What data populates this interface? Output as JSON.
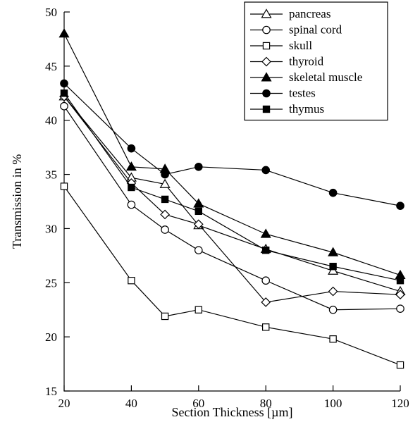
{
  "chart_data": {
    "type": "line",
    "xlabel": "Section Thickness [µm]",
    "ylabel": "Transmission in %",
    "xlim": [
      20,
      120
    ],
    "ylim": [
      15,
      50
    ],
    "x_ticks": [
      20,
      40,
      60,
      80,
      100,
      120
    ],
    "y_ticks": [
      15,
      20,
      25,
      30,
      35,
      40,
      45,
      50
    ],
    "grid": false,
    "legend_position": "top-right",
    "series": [
      {
        "name": "pancreas",
        "marker": "triangle-open",
        "x": [
          20,
          40,
          50,
          60,
          80,
          100,
          120
        ],
        "y": [
          42.2,
          34.7,
          34.1,
          30.3,
          28.1,
          26.1,
          24.2
        ]
      },
      {
        "name": "spinal cord",
        "marker": "circle-open",
        "x": [
          20,
          40,
          50,
          60,
          80,
          100,
          120
        ],
        "y": [
          41.3,
          32.2,
          29.9,
          28.0,
          25.2,
          22.5,
          22.6
        ]
      },
      {
        "name": "skull",
        "marker": "square-open",
        "x": [
          20,
          40,
          50,
          60,
          80,
          100,
          120
        ],
        "y": [
          33.9,
          25.2,
          21.9,
          22.5,
          20.9,
          19.8,
          17.4
        ]
      },
      {
        "name": "thyroid",
        "marker": "diamond-open",
        "x": [
          20,
          40,
          50,
          60,
          80,
          100,
          120
        ],
        "y": [
          42.2,
          34.2,
          31.3,
          30.4,
          23.2,
          24.2,
          23.9
        ]
      },
      {
        "name": "skeletal muscle",
        "marker": "triangle-filled",
        "x": [
          20,
          40,
          50,
          60,
          80,
          100,
          120
        ],
        "y": [
          48.0,
          35.7,
          35.5,
          32.3,
          29.5,
          27.8,
          25.7
        ]
      },
      {
        "name": "testes",
        "marker": "circle-filled",
        "x": [
          20,
          40,
          50,
          60,
          80,
          100,
          120
        ],
        "y": [
          43.4,
          37.4,
          35.0,
          35.7,
          35.4,
          33.3,
          32.1
        ]
      },
      {
        "name": "thymus",
        "marker": "square-filled",
        "x": [
          20,
          40,
          50,
          60,
          80,
          100,
          120
        ],
        "y": [
          42.5,
          33.8,
          32.7,
          31.6,
          28.0,
          26.5,
          25.2
        ]
      }
    ]
  }
}
